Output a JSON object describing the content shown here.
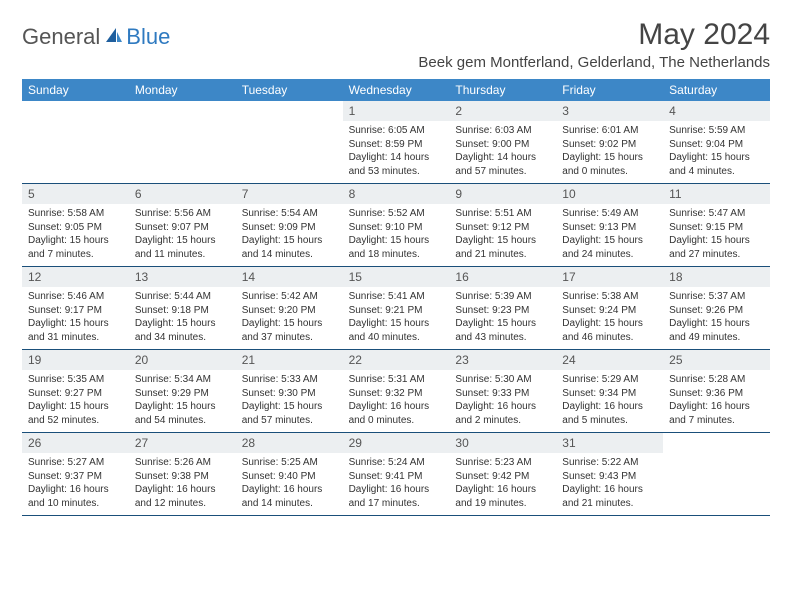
{
  "logo": {
    "text1": "General",
    "text2": "Blue"
  },
  "title": "May 2024",
  "location": "Beek gem Montferland, Gelderland, The Netherlands",
  "colors": {
    "header_bg": "#3d87c7",
    "header_fg": "#ffffff",
    "daynum_bg": "#eceff1",
    "border": "#1a4f7a",
    "logo_blue": "#2f7ac0"
  },
  "dayNames": [
    "Sunday",
    "Monday",
    "Tuesday",
    "Wednesday",
    "Thursday",
    "Friday",
    "Saturday"
  ],
  "weeks": [
    [
      {
        "n": "",
        "sr": "",
        "ss": "",
        "dl": ""
      },
      {
        "n": "",
        "sr": "",
        "ss": "",
        "dl": ""
      },
      {
        "n": "",
        "sr": "",
        "ss": "",
        "dl": ""
      },
      {
        "n": "1",
        "sr": "Sunrise: 6:05 AM",
        "ss": "Sunset: 8:59 PM",
        "dl": "Daylight: 14 hours and 53 minutes."
      },
      {
        "n": "2",
        "sr": "Sunrise: 6:03 AM",
        "ss": "Sunset: 9:00 PM",
        "dl": "Daylight: 14 hours and 57 minutes."
      },
      {
        "n": "3",
        "sr": "Sunrise: 6:01 AM",
        "ss": "Sunset: 9:02 PM",
        "dl": "Daylight: 15 hours and 0 minutes."
      },
      {
        "n": "4",
        "sr": "Sunrise: 5:59 AM",
        "ss": "Sunset: 9:04 PM",
        "dl": "Daylight: 15 hours and 4 minutes."
      }
    ],
    [
      {
        "n": "5",
        "sr": "Sunrise: 5:58 AM",
        "ss": "Sunset: 9:05 PM",
        "dl": "Daylight: 15 hours and 7 minutes."
      },
      {
        "n": "6",
        "sr": "Sunrise: 5:56 AM",
        "ss": "Sunset: 9:07 PM",
        "dl": "Daylight: 15 hours and 11 minutes."
      },
      {
        "n": "7",
        "sr": "Sunrise: 5:54 AM",
        "ss": "Sunset: 9:09 PM",
        "dl": "Daylight: 15 hours and 14 minutes."
      },
      {
        "n": "8",
        "sr": "Sunrise: 5:52 AM",
        "ss": "Sunset: 9:10 PM",
        "dl": "Daylight: 15 hours and 18 minutes."
      },
      {
        "n": "9",
        "sr": "Sunrise: 5:51 AM",
        "ss": "Sunset: 9:12 PM",
        "dl": "Daylight: 15 hours and 21 minutes."
      },
      {
        "n": "10",
        "sr": "Sunrise: 5:49 AM",
        "ss": "Sunset: 9:13 PM",
        "dl": "Daylight: 15 hours and 24 minutes."
      },
      {
        "n": "11",
        "sr": "Sunrise: 5:47 AM",
        "ss": "Sunset: 9:15 PM",
        "dl": "Daylight: 15 hours and 27 minutes."
      }
    ],
    [
      {
        "n": "12",
        "sr": "Sunrise: 5:46 AM",
        "ss": "Sunset: 9:17 PM",
        "dl": "Daylight: 15 hours and 31 minutes."
      },
      {
        "n": "13",
        "sr": "Sunrise: 5:44 AM",
        "ss": "Sunset: 9:18 PM",
        "dl": "Daylight: 15 hours and 34 minutes."
      },
      {
        "n": "14",
        "sr": "Sunrise: 5:42 AM",
        "ss": "Sunset: 9:20 PM",
        "dl": "Daylight: 15 hours and 37 minutes."
      },
      {
        "n": "15",
        "sr": "Sunrise: 5:41 AM",
        "ss": "Sunset: 9:21 PM",
        "dl": "Daylight: 15 hours and 40 minutes."
      },
      {
        "n": "16",
        "sr": "Sunrise: 5:39 AM",
        "ss": "Sunset: 9:23 PM",
        "dl": "Daylight: 15 hours and 43 minutes."
      },
      {
        "n": "17",
        "sr": "Sunrise: 5:38 AM",
        "ss": "Sunset: 9:24 PM",
        "dl": "Daylight: 15 hours and 46 minutes."
      },
      {
        "n": "18",
        "sr": "Sunrise: 5:37 AM",
        "ss": "Sunset: 9:26 PM",
        "dl": "Daylight: 15 hours and 49 minutes."
      }
    ],
    [
      {
        "n": "19",
        "sr": "Sunrise: 5:35 AM",
        "ss": "Sunset: 9:27 PM",
        "dl": "Daylight: 15 hours and 52 minutes."
      },
      {
        "n": "20",
        "sr": "Sunrise: 5:34 AM",
        "ss": "Sunset: 9:29 PM",
        "dl": "Daylight: 15 hours and 54 minutes."
      },
      {
        "n": "21",
        "sr": "Sunrise: 5:33 AM",
        "ss": "Sunset: 9:30 PM",
        "dl": "Daylight: 15 hours and 57 minutes."
      },
      {
        "n": "22",
        "sr": "Sunrise: 5:31 AM",
        "ss": "Sunset: 9:32 PM",
        "dl": "Daylight: 16 hours and 0 minutes."
      },
      {
        "n": "23",
        "sr": "Sunrise: 5:30 AM",
        "ss": "Sunset: 9:33 PM",
        "dl": "Daylight: 16 hours and 2 minutes."
      },
      {
        "n": "24",
        "sr": "Sunrise: 5:29 AM",
        "ss": "Sunset: 9:34 PM",
        "dl": "Daylight: 16 hours and 5 minutes."
      },
      {
        "n": "25",
        "sr": "Sunrise: 5:28 AM",
        "ss": "Sunset: 9:36 PM",
        "dl": "Daylight: 16 hours and 7 minutes."
      }
    ],
    [
      {
        "n": "26",
        "sr": "Sunrise: 5:27 AM",
        "ss": "Sunset: 9:37 PM",
        "dl": "Daylight: 16 hours and 10 minutes."
      },
      {
        "n": "27",
        "sr": "Sunrise: 5:26 AM",
        "ss": "Sunset: 9:38 PM",
        "dl": "Daylight: 16 hours and 12 minutes."
      },
      {
        "n": "28",
        "sr": "Sunrise: 5:25 AM",
        "ss": "Sunset: 9:40 PM",
        "dl": "Daylight: 16 hours and 14 minutes."
      },
      {
        "n": "29",
        "sr": "Sunrise: 5:24 AM",
        "ss": "Sunset: 9:41 PM",
        "dl": "Daylight: 16 hours and 17 minutes."
      },
      {
        "n": "30",
        "sr": "Sunrise: 5:23 AM",
        "ss": "Sunset: 9:42 PM",
        "dl": "Daylight: 16 hours and 19 minutes."
      },
      {
        "n": "31",
        "sr": "Sunrise: 5:22 AM",
        "ss": "Sunset: 9:43 PM",
        "dl": "Daylight: 16 hours and 21 minutes."
      },
      {
        "n": "",
        "sr": "",
        "ss": "",
        "dl": ""
      }
    ]
  ]
}
